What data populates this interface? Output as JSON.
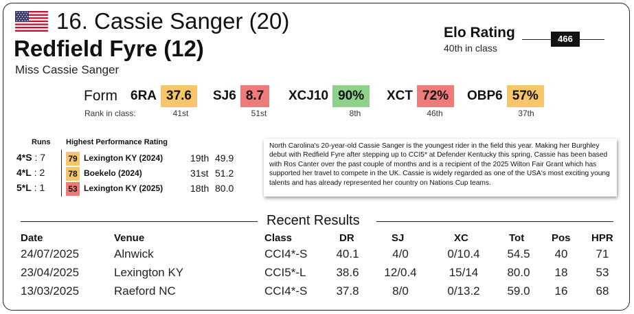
{
  "header": {
    "flag_icon": "us-flag-icon",
    "rider_title": "16. Cassie Sanger (20)",
    "horse_name": "Redfield Fyre (12)",
    "owner": "Miss Cassie Sanger"
  },
  "elo": {
    "label": "Elo Rating",
    "value": "466",
    "rank_text": "40th in class"
  },
  "form": {
    "label": "Form",
    "rank_label": "Rank in class:",
    "items": [
      {
        "code": "6RA",
        "value": "37.6",
        "rank": "41st",
        "color": "#f7c56a"
      },
      {
        "code": "SJ6",
        "value": "8.7",
        "rank": "51st",
        "color": "#ef7a7a"
      },
      {
        "code": "XCJ10",
        "value": "90%",
        "rank": "8th",
        "color": "#8fd08a"
      },
      {
        "code": "XCT",
        "value": "72%",
        "rank": "46th",
        "color": "#ef7a7a"
      },
      {
        "code": "OBP6",
        "value": "57%",
        "rank": "37th",
        "color": "#f7c56a"
      }
    ]
  },
  "hpr": {
    "runs_heading": "Runs",
    "heading": "Highest Performance Rating",
    "rows": [
      {
        "level": "4*S",
        "runs": " : 7",
        "rating": "79",
        "event": "Lexington KY (2024)",
        "position": "19th",
        "score": "49.9",
        "color": "#f7c56a"
      },
      {
        "level": "4*L",
        "runs": " : 2",
        "rating": "78",
        "event": "Boekelo (2024)",
        "position": "31st",
        "score": "51.2",
        "color": "#f7c56a"
      },
      {
        "level": "5*L",
        "runs": " : 1",
        "rating": "53",
        "event": "Lexington KY (2025)",
        "position": "18th",
        "score": "80.0",
        "color": "#ef7a7a"
      }
    ]
  },
  "bio": "North Carolina's 20-year-old Cassie Sanger is the youngest rider in the field this year. Making her Burghley debut with Redfield Fyre after stepping up to CCI5* at Defender Kentucky this spring, Cassie has been based with Ros Canter over the past couple of months and is a recipient of the 2025 Wilton Fair Grant which has supported her travel to compete in the UK. Cassie is widely regarded as one of the USA's most exciting young talents and has already represented her country on Nations Cup teams.",
  "recent_results": {
    "title": "Recent Results",
    "columns": [
      "Date",
      "Venue",
      "Class",
      "DR",
      "SJ",
      "XC",
      "Tot",
      "Pos",
      "HPR"
    ],
    "rows": [
      [
        "24/07/2025",
        "Alnwick",
        "CCI4*-S",
        "40.1",
        "4/0",
        "0/10.4",
        "54.5",
        "40",
        "71"
      ],
      [
        "23/04/2025",
        "Lexington KY",
        "CCI5*-L",
        "38.6",
        "12/0.4",
        "15/14",
        "80.0",
        "18",
        "53"
      ],
      [
        "13/03/2025",
        "Raeford NC",
        "CCI4*-S",
        "37.8",
        "8/0",
        "0/13.2",
        "59.0",
        "16",
        "68"
      ]
    ]
  }
}
